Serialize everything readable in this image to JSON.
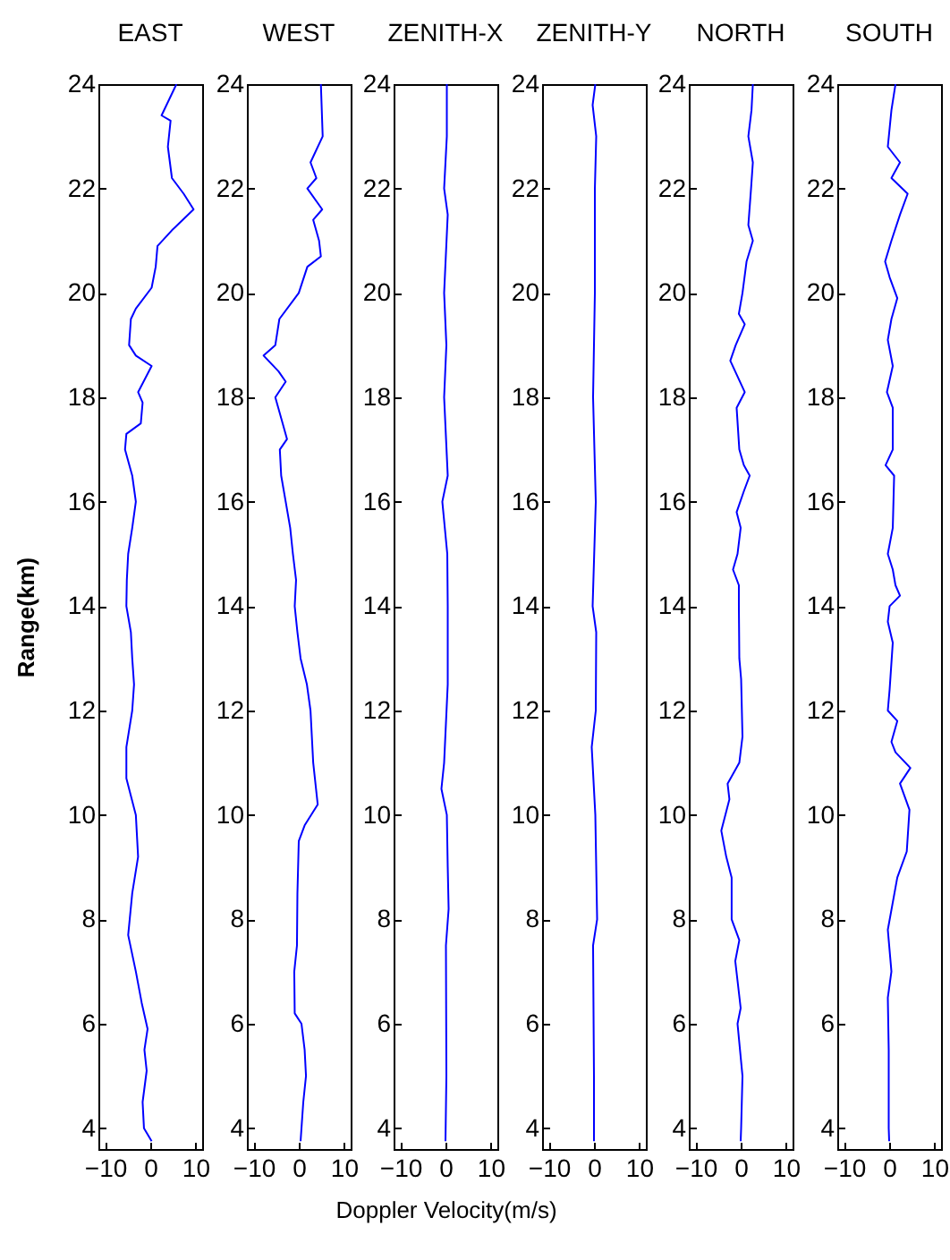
{
  "chart_data": [
    {
      "type": "line",
      "title": "EAST",
      "ylabel": "Range(km)",
      "xlim": [
        -11.5,
        11.5
      ],
      "xticks": [
        -10,
        0,
        10
      ],
      "ylim": [
        3.6,
        24
      ],
      "yticks": [
        4,
        6,
        8,
        10,
        12,
        14,
        16,
        18,
        20,
        22,
        24
      ],
      "series": [
        {
          "color": "#0000ff",
          "x": [
            5.8,
            2.5,
            4.5,
            3.9,
            4.8,
            7.4,
            9.6,
            4.8,
            1.6,
            1.2,
            0.3,
            -3.2,
            -4.3,
            -4.7,
            -3.2,
            0.3,
            -2.7,
            -1.7,
            -2.1,
            -5.3,
            -5.6,
            -4.0,
            -3.2,
            -4.0,
            -4.9,
            -5.2,
            -5.3,
            -4.3,
            -4.0,
            -3.6,
            -4.0,
            -5.3,
            -5.3,
            -3.2,
            -2.7,
            -4.0,
            -4.9,
            -3.2,
            -1.9,
            -0.6,
            -1.3,
            -0.8,
            -1.7,
            -1.4,
            0.3
          ],
          "values": [
            24,
            23.4,
            23.3,
            22.8,
            22.2,
            21.9,
            21.6,
            21.2,
            20.9,
            20.5,
            20.1,
            19.7,
            19.5,
            19.0,
            18.8,
            18.6,
            18.1,
            17.9,
            17.5,
            17.3,
            17.0,
            16.5,
            16.0,
            15.5,
            15.0,
            14.5,
            14,
            13.5,
            13,
            12.5,
            12,
            11.3,
            10.7,
            10.0,
            9.2,
            8.5,
            7.7,
            7.0,
            6.4,
            5.9,
            5.5,
            5.1,
            4.5,
            4.0,
            3.75
          ]
        }
      ]
    },
    {
      "type": "line",
      "title": "WEST",
      "xlim": [
        -11.5,
        11.5
      ],
      "xticks": [
        -10,
        0,
        10
      ],
      "ylim": [
        3.6,
        24
      ],
      "yticks": [
        4,
        6,
        8,
        10,
        12,
        14,
        16,
        18,
        20,
        22,
        24
      ],
      "series": [
        {
          "color": "#0000ff",
          "x": [
            4.9,
            5.3,
            2.6,
            3.9,
            1.9,
            5.2,
            3.2,
            4.5,
            4.9,
            1.9,
            0,
            -4.3,
            -5.2,
            -7.8,
            -4.5,
            -2.9,
            -5.2,
            -3.9,
            -2.6,
            -4.2,
            -3.9,
            -2.9,
            -1.9,
            -1.3,
            -0.6,
            -0.9,
            -0.3,
            0.4,
            1.8,
            2.6,
            3.2,
            4.2,
            1.3,
            0,
            -0.3,
            -0.4,
            -1.0,
            -0.9,
            0.6,
            1.3,
            1.6,
            1.0,
            0.4
          ],
          "values": [
            24,
            23,
            22.5,
            22.2,
            22.0,
            21.6,
            21.4,
            21.0,
            20.7,
            20.5,
            20.0,
            19.5,
            19.0,
            18.8,
            18.5,
            18.3,
            18.0,
            17.6,
            17.2,
            17.0,
            16.5,
            16.0,
            15.5,
            15,
            14.5,
            14,
            13.5,
            13.0,
            12.5,
            12.0,
            11.0,
            10.2,
            9.8,
            9.5,
            8.5,
            7.5,
            7.0,
            6.2,
            6.0,
            5.5,
            5.0,
            4.5,
            3.75
          ]
        }
      ]
    },
    {
      "type": "line",
      "title": "ZENITH-X",
      "xlabel": "Doppler Velocity(m/s)",
      "xlim": [
        -11.5,
        11.5
      ],
      "xticks": [
        -10,
        0,
        10
      ],
      "ylim": [
        3.6,
        24
      ],
      "yticks": [
        4,
        6,
        8,
        10,
        12,
        14,
        16,
        18,
        20,
        22,
        24
      ],
      "series": [
        {
          "color": "#0000ff",
          "x": [
            0.3,
            0.3,
            -0.3,
            0.5,
            -0.3,
            0.2,
            -0.3,
            0.5,
            -0.7,
            0.4,
            0.5,
            0.5,
            -0.3,
            -0.9,
            0.3,
            0.5,
            0.7,
            0.1,
            0.2,
            0
          ],
          "values": [
            24,
            23,
            22,
            21.5,
            20,
            19,
            18,
            16.5,
            16,
            15,
            14,
            12.5,
            11,
            10.5,
            10,
            9,
            8.2,
            7.5,
            5,
            3.75
          ]
        }
      ]
    },
    {
      "type": "line",
      "title": "ZENITH-Y",
      "xlim": [
        -11.5,
        11.5
      ],
      "xticks": [
        -10,
        0,
        10
      ],
      "ylim": [
        3.6,
        24
      ],
      "yticks": [
        4,
        6,
        8,
        10,
        12,
        14,
        16,
        18,
        20,
        22,
        24
      ],
      "series": [
        {
          "color": "#0000ff",
          "x": [
            0.3,
            -0.3,
            0.5,
            0.2,
            0.2,
            -0.2,
            0.4,
            -0.3,
            0.5,
            0.4,
            -0.5,
            0.3,
            0.7,
            -0.2,
            0,
            0
          ],
          "values": [
            24,
            23.6,
            23,
            22,
            20,
            18,
            16,
            14,
            13.5,
            12,
            11.3,
            10,
            8,
            7.5,
            5,
            3.75
          ]
        }
      ]
    },
    {
      "type": "line",
      "title": "NORTH",
      "xlim": [
        -11.5,
        11.5
      ],
      "xticks": [
        -10,
        0,
        10
      ],
      "ylim": [
        3.6,
        24
      ],
      "yticks": [
        4,
        6,
        8,
        10,
        12,
        14,
        16,
        18,
        20,
        22,
        24
      ],
      "series": [
        {
          "color": "#0000ff",
          "x": [
            2.7,
            2.4,
            1.7,
            2.7,
            2.3,
            1.7,
            2.7,
            1.3,
            0.4,
            -0.4,
            0.9,
            -1.1,
            -2.3,
            0.9,
            -0.9,
            -0.3,
            0.7,
            2.0,
            0.7,
            -0.9,
            0,
            -0.7,
            -1.7,
            -0.4,
            -0.4,
            -0.3,
            0.1,
            0.4,
            -0.3,
            -2.9,
            -2.5,
            -4.3,
            -3.2,
            -2.0,
            -2.0,
            -0.3,
            -1.2,
            0,
            -0.7,
            0.4,
            0.1,
            0
          ],
          "values": [
            24,
            23.5,
            23,
            22.5,
            22,
            21.3,
            21.0,
            20.6,
            20.0,
            19.6,
            19.4,
            19,
            18.7,
            18.1,
            17.8,
            17.0,
            16.7,
            16.5,
            16.2,
            15.8,
            15.5,
            15,
            14.7,
            14.4,
            14,
            13,
            12.6,
            11.5,
            11.0,
            10.6,
            10.3,
            9.7,
            9.2,
            8.8,
            8.0,
            7.6,
            7.2,
            6.3,
            6.0,
            5.0,
            4.0,
            3.75
          ]
        }
      ]
    },
    {
      "type": "line",
      "title": "SOUTH",
      "xlim": [
        -11.5,
        11.5
      ],
      "xticks": [
        -10,
        0,
        10
      ],
      "ylim": [
        3.6,
        24
      ],
      "yticks": [
        4,
        6,
        8,
        10,
        12,
        14,
        16,
        18,
        20,
        22,
        24
      ],
      "series": [
        {
          "color": "#0000ff",
          "x": [
            1.4,
            0.5,
            -0.3,
            2.4,
            0.5,
            4.1,
            2.4,
            0.5,
            -0.9,
            0.1,
            1.8,
            0.5,
            -0.3,
            0.8,
            -0.5,
            0.8,
            0.8,
            -0.8,
            1.1,
            0.8,
            -0.3,
            0.8,
            1.4,
            2.4,
            0.1,
            -0.3,
            0.8,
            0.1,
            -0.3,
            1.8,
            0.5,
            1.4,
            4.7,
            2.4,
            4.5,
            3.9,
            1.8,
            -0.3,
            0.5,
            -0.3,
            -0.1,
            -0.1,
            0
          ],
          "values": [
            24,
            23.5,
            22.8,
            22.5,
            22.2,
            21.9,
            21.5,
            21.0,
            20.6,
            20.3,
            19.9,
            19.5,
            19.1,
            18.6,
            18.1,
            17.8,
            17.0,
            16.7,
            16.5,
            15.5,
            15.0,
            14.7,
            14.4,
            14.2,
            14,
            13.7,
            13.3,
            12.4,
            12.0,
            11.8,
            11.4,
            11.2,
            10.9,
            10.6,
            10.1,
            9.3,
            8.8,
            7.8,
            7.0,
            6.5,
            5.5,
            4.0,
            3.75
          ]
        }
      ]
    }
  ]
}
